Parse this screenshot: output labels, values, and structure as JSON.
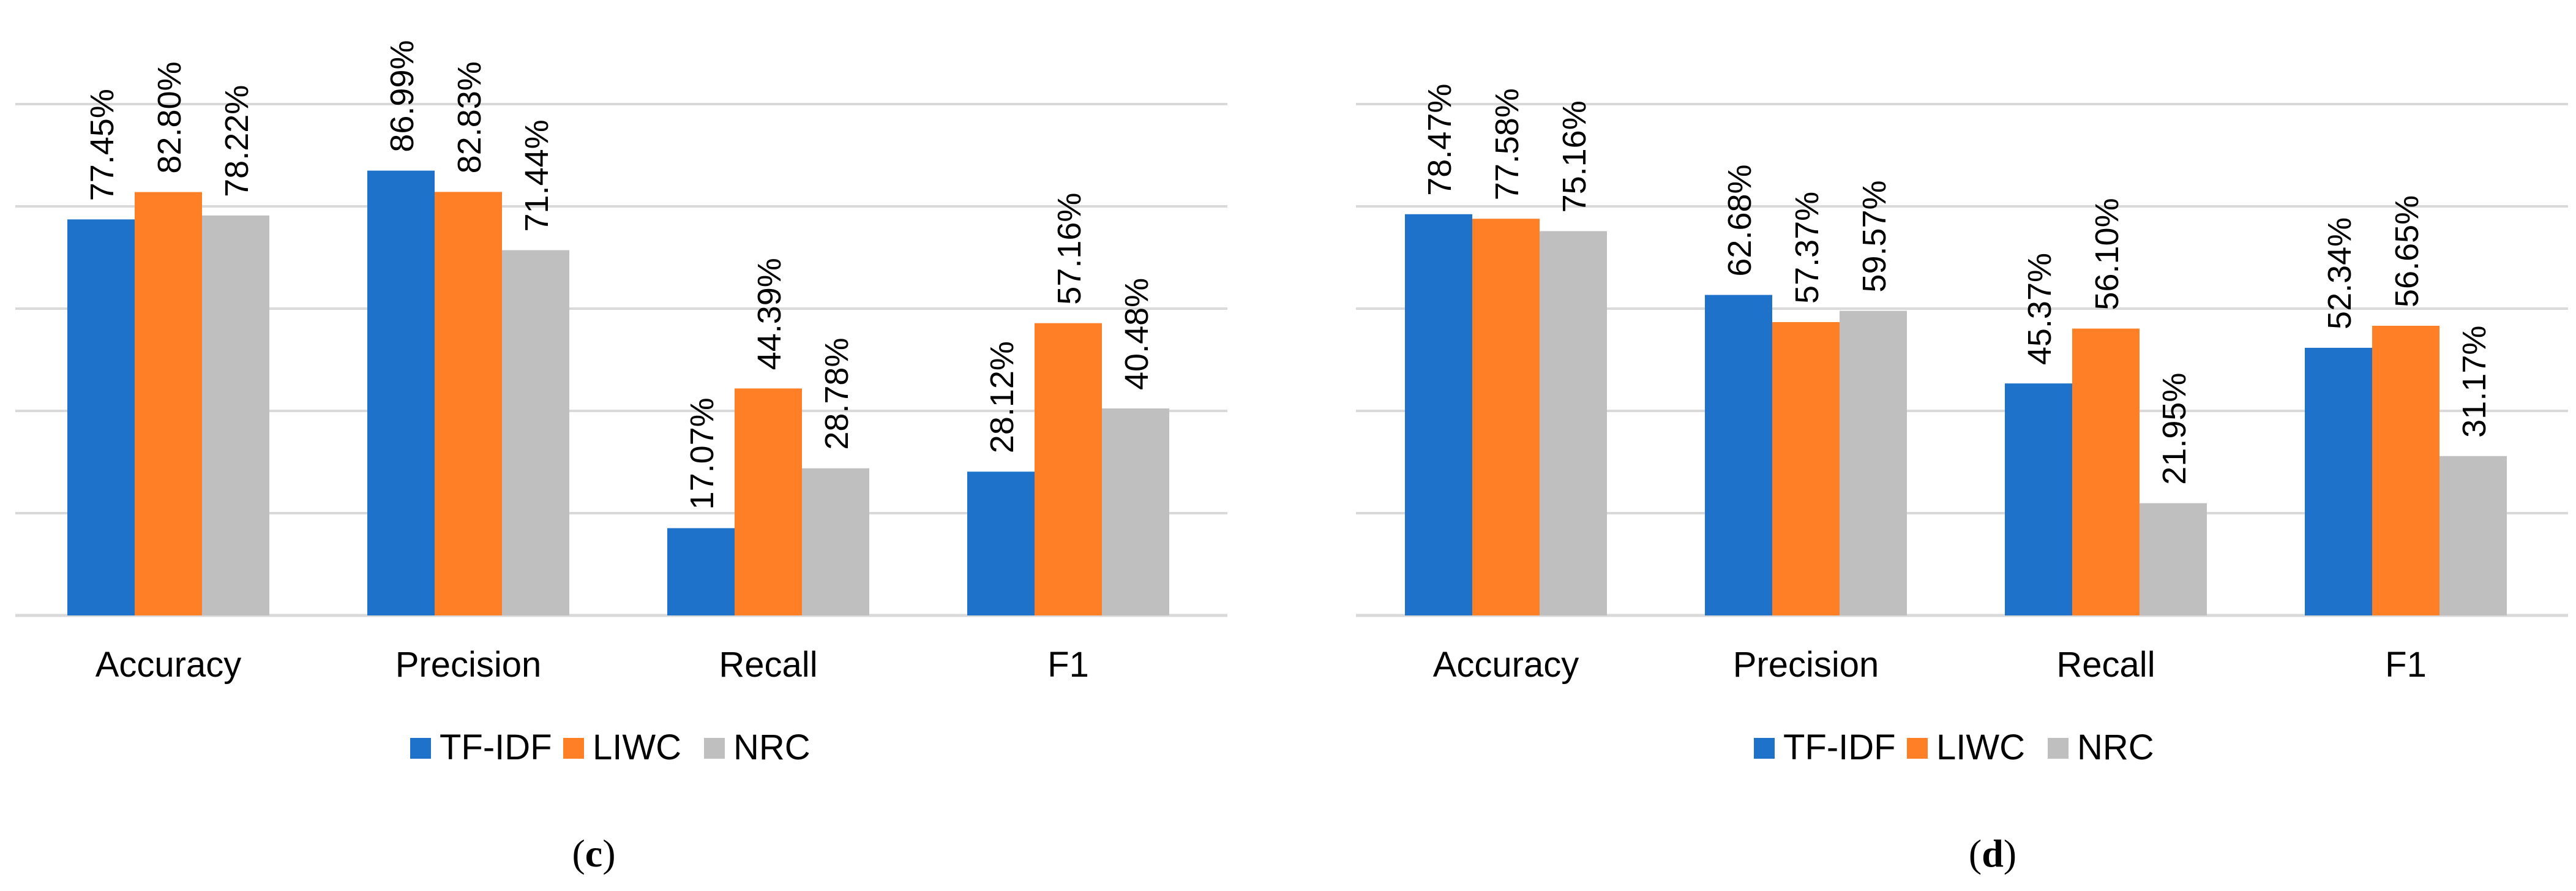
{
  "charts": [
    {
      "id": "c",
      "panel_prefix": "(",
      "panel_letter": "c",
      "panel_suffix": ")"
    },
    {
      "id": "d",
      "panel_prefix": "(",
      "panel_letter": "d",
      "panel_suffix": ")"
    }
  ],
  "colors": {
    "TF-IDF": "#1f72c9",
    "LIWC": "#ff7f27",
    "NRC": "#bfbfbf",
    "grid": "#d9d9d9",
    "axis": "#d9d9d9",
    "text": "#000000"
  },
  "chart_data": [
    {
      "type": "bar",
      "title": "",
      "xlabel": "",
      "ylabel": "",
      "ylim": [
        0,
        100
      ],
      "grid": true,
      "legend": "bottom-center",
      "categories": [
        "Accuracy",
        "Precision",
        "Recall",
        "F1"
      ],
      "series": [
        {
          "name": "TF-IDF",
          "values": [
            77.45,
            86.99,
            17.07,
            28.12
          ],
          "labels": [
            "77.45%",
            "86.99%",
            "17.07%",
            "28.12%"
          ]
        },
        {
          "name": "LIWC",
          "values": [
            82.8,
            82.83,
            44.39,
            57.16
          ],
          "labels": [
            "82.80%",
            "82.83%",
            "44.39%",
            "57.16%"
          ]
        },
        {
          "name": "NRC",
          "values": [
            78.22,
            71.44,
            28.78,
            40.48
          ],
          "labels": [
            "78.22%",
            "71.44%",
            "28.78%",
            "40.48%"
          ]
        }
      ]
    },
    {
      "type": "bar",
      "title": "",
      "xlabel": "",
      "ylabel": "",
      "ylim": [
        0,
        100
      ],
      "grid": true,
      "legend": "bottom-center",
      "categories": [
        "Accuracy",
        "Precision",
        "Recall",
        "F1"
      ],
      "series": [
        {
          "name": "TF-IDF",
          "values": [
            78.47,
            62.68,
            45.37,
            52.34
          ],
          "labels": [
            "78.47%",
            "62.68%",
            "45.37%",
            "52.34%"
          ]
        },
        {
          "name": "LIWC",
          "values": [
            77.58,
            57.37,
            56.1,
            56.65
          ],
          "labels": [
            "77.58%",
            "57.37%",
            "56.10%",
            "56.65%"
          ]
        },
        {
          "name": "NRC",
          "values": [
            75.16,
            59.57,
            21.95,
            31.17
          ],
          "labels": [
            "75.16%",
            "59.57%",
            "21.95%",
            "31.17%"
          ]
        }
      ]
    }
  ]
}
